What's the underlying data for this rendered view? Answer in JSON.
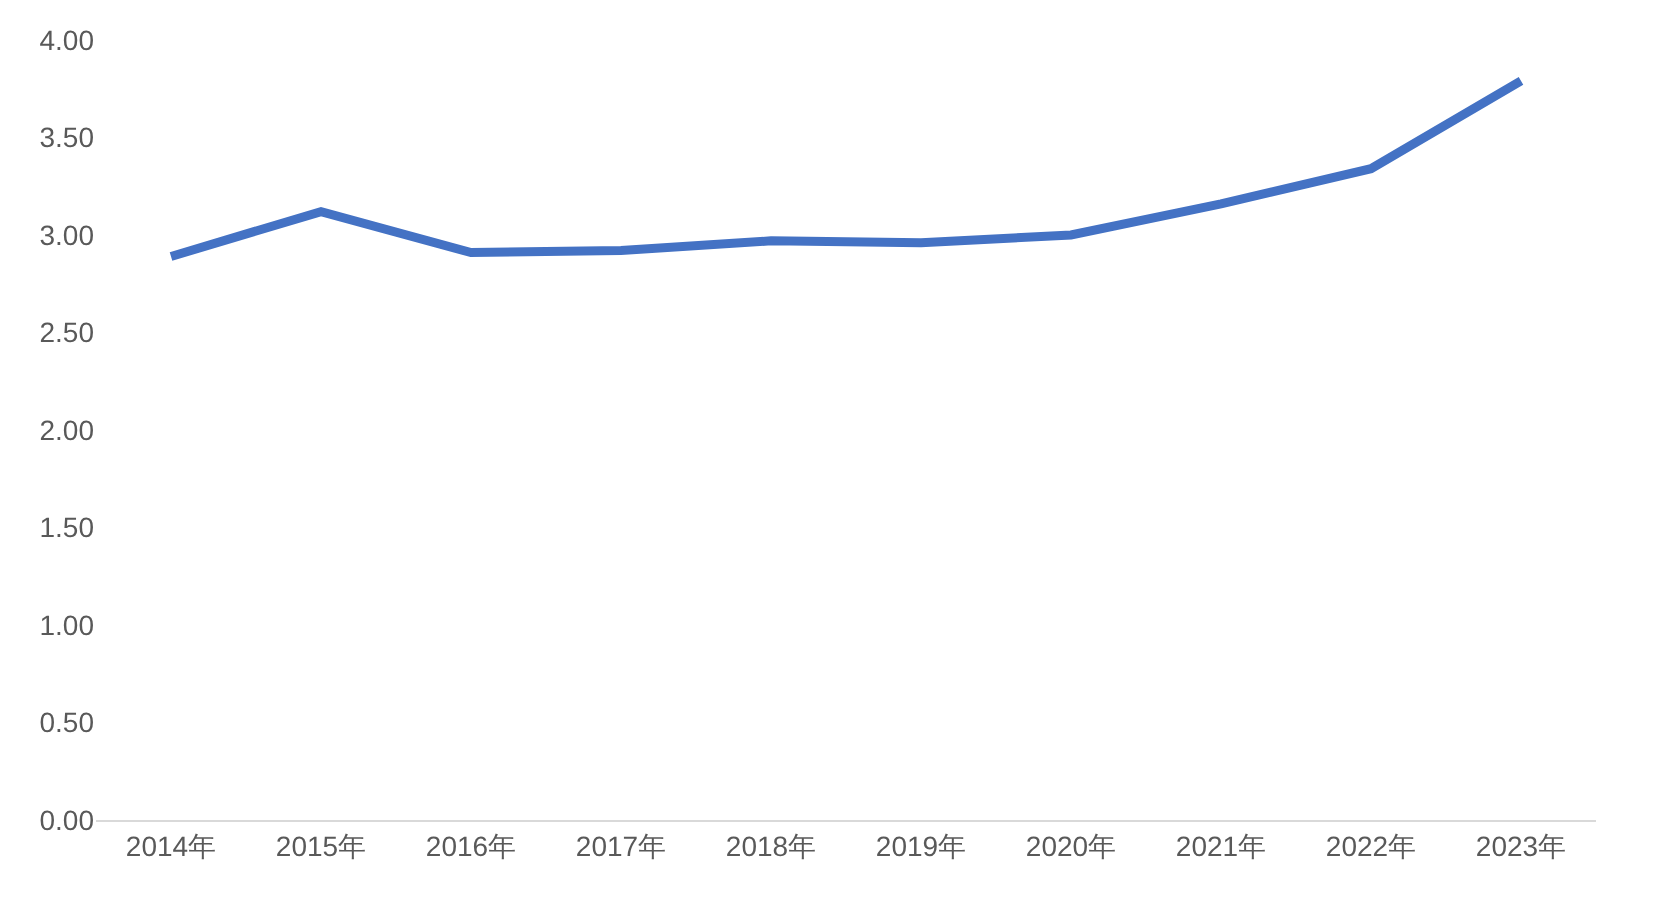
{
  "chart_data": {
    "type": "line",
    "categories": [
      "2014年",
      "2015年",
      "2016年",
      "2017年",
      "2018年",
      "2019年",
      "2020年",
      "2021年",
      "2022年",
      "2023年"
    ],
    "series": [
      {
        "color": "#4472c4",
        "values": [
          2.89,
          3.12,
          2.91,
          2.92,
          2.97,
          2.96,
          3.0,
          3.16,
          3.34,
          3.79
        ]
      }
    ],
    "ylim": [
      0,
      4
    ],
    "yticks": [
      {
        "value": 0,
        "label": "0.00"
      },
      {
        "value": 0.5,
        "label": "0.50"
      },
      {
        "value": 1,
        "label": "1.00"
      },
      {
        "value": 1.5,
        "label": "1.50"
      },
      {
        "value": 2,
        "label": "2.00"
      },
      {
        "value": 2.5,
        "label": "2.50"
      },
      {
        "value": 3,
        "label": "3.00"
      },
      {
        "value": 3.5,
        "label": "3.50"
      },
      {
        "value": 4,
        "label": "4.00"
      }
    ],
    "grid": false,
    "marker": "none",
    "line_style": "solid"
  }
}
